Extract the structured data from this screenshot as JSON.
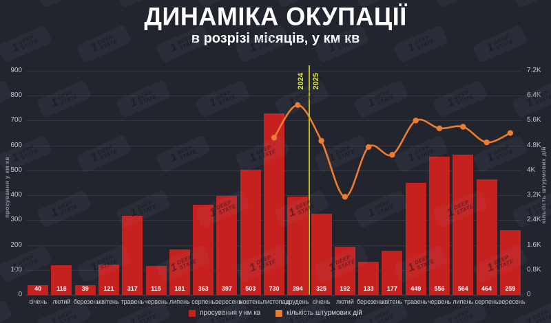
{
  "header": {
    "title": "ДИНАМІКА ОКУПАЦІЇ",
    "subtitle": "в розрізі місяців, у км кв"
  },
  "watermark": {
    "digit": "1",
    "brand_line1": "DEEP",
    "brand_line2": "STATE"
  },
  "chart_data": {
    "type": "bar",
    "categories": [
      "січень",
      "лютий",
      "березень",
      "квітень",
      "травень",
      "червень",
      "липень",
      "серпень",
      "вересень",
      "жовтень",
      "листопад",
      "грудень",
      "січень",
      "лютий",
      "березень",
      "квітень",
      "травень",
      "червень",
      "липень",
      "серпень",
      "вересень"
    ],
    "series": [
      {
        "name": "просування у км кв",
        "type": "bar",
        "axis": "left",
        "color": "#c7211f",
        "values": [
          40,
          118,
          39,
          121,
          317,
          115,
          181,
          363,
          397,
          503,
          730,
          394,
          325,
          192,
          133,
          177,
          449,
          556,
          564,
          464,
          259
        ]
      },
      {
        "name": "кількість штурмових дій",
        "type": "line",
        "axis": "right",
        "color": "#ee7c2f",
        "values": [
          null,
          null,
          null,
          null,
          null,
          null,
          null,
          null,
          null,
          null,
          5050,
          6100,
          4950,
          3150,
          4750,
          4500,
          5600,
          5350,
          5400,
          4900,
          5200
        ]
      }
    ],
    "left_axis": {
      "title": "просування у км кв",
      "min": 0,
      "max": 900,
      "tick_labels": [
        "0",
        "100",
        "200",
        "300",
        "400",
        "500",
        "600",
        "700",
        "800",
        "900"
      ]
    },
    "right_axis": {
      "title": "кількість штурмових дій",
      "min": 0,
      "max": 7200,
      "tick_labels": [
        "0",
        "0.8K",
        "1.6K",
        "2.4K",
        "3.2K",
        "4K",
        "4.8K",
        "5.6K",
        "6.4K",
        "7.2K"
      ]
    },
    "year_divider": {
      "boundary_index": 12,
      "left_label": "2024",
      "right_label": "2025",
      "line_color": "#b9bd20",
      "label_color": "#e9ef21"
    },
    "grid": true,
    "legend_position": "bottom"
  },
  "legend": {
    "items": [
      {
        "label": "просування у км кв",
        "color": "#c7211f"
      },
      {
        "label": "кількість штурмових дій",
        "color": "#ee7c2f"
      }
    ]
  },
  "colors": {
    "background": "#23252e",
    "bar": "#c7211f",
    "line": "#ee7c2f",
    "grid": "#343741",
    "tick_text": "#c3c6cd",
    "month_text": "#c9ccd3",
    "value_text": "#ffffff",
    "axis_title_text": "#8f939d",
    "legend_text": "#d8dbe1",
    "title_text": "#ffffff",
    "divider_line": "#b9bd20",
    "year_label": "#e9ef21"
  }
}
